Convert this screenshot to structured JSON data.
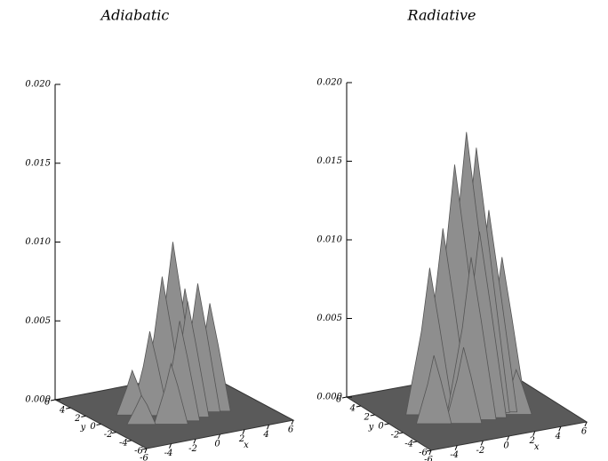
{
  "chart_data": [
    {
      "type": "surface",
      "title": "Adiabatic",
      "color": "#8e8e8e",
      "floor_color": "#5a5a5a",
      "zlim": [
        0,
        0.02
      ],
      "zticks": [
        {
          "value": 0,
          "label": "0.000"
        },
        {
          "value": 0.005,
          "label": "0.005"
        },
        {
          "value": 0.01,
          "label": "0.010"
        },
        {
          "value": 0.015,
          "label": "0.015"
        },
        {
          "value": 0.02,
          "label": "0.020"
        }
      ],
      "xlim": [
        -6,
        6
      ],
      "xticks": [
        -6,
        -4,
        -2,
        0,
        2,
        4,
        6
      ],
      "xlabel": "x",
      "ylim": [
        -6,
        6
      ],
      "yticks": [
        -6,
        -4,
        -2,
        0,
        2,
        4,
        6
      ],
      "ylabel": "y",
      "x": [
        -2.5,
        -1.5,
        -0.8,
        0.2,
        1.0,
        1.8,
        2.6,
        -0.3,
        0.6,
        -1.2,
        1.4,
        0.0,
        -3.0,
        2.2
      ],
      "y": [
        1.5,
        0.8,
        0.3,
        0.5,
        0.2,
        -0.2,
        -0.5,
        -1.2,
        -0.8,
        -1.5,
        1.0,
        2.0,
        -0.5,
        1.6
      ],
      "z": [
        0.0025,
        0.005,
        0.0085,
        0.0105,
        0.0075,
        0.0078,
        0.0065,
        0.006,
        0.007,
        0.0035,
        0.005,
        0.004,
        0.0015,
        0.003
      ]
    },
    {
      "type": "surface",
      "title": "Radiative",
      "color": "#8e8e8e",
      "floor_color": "#5a5a5a",
      "zlim": [
        0,
        0.02
      ],
      "zticks": [
        {
          "value": 0,
          "label": "0.000"
        },
        {
          "value": 0.005,
          "label": "0.005"
        },
        {
          "value": 0.01,
          "label": "0.010"
        },
        {
          "value": 0.015,
          "label": "0.015"
        },
        {
          "value": 0.02,
          "label": "0.020"
        }
      ],
      "xlim": [
        -6,
        6
      ],
      "xticks": [
        -6,
        -4,
        -2,
        0,
        2,
        4,
        6
      ],
      "xlabel": "x",
      "ylim": [
        -6,
        6
      ],
      "yticks": [
        -6,
        -4,
        -2,
        0,
        2,
        4,
        6
      ],
      "ylabel": "y",
      "x": [
        -2.2,
        -1.4,
        -0.6,
        0.2,
        0.8,
        1.6,
        2.4,
        -0.2,
        0.5,
        -1.0,
        1.2,
        3.0,
        -2.8,
        0.0,
        1.9
      ],
      "y": [
        1.2,
        0.8,
        0.6,
        0.4,
        0.1,
        -0.2,
        -0.6,
        -1.0,
        -0.9,
        -1.4,
        1.4,
        -1.5,
        -0.5,
        2.0,
        1.8
      ],
      "z": [
        0.009,
        0.0115,
        0.0155,
        0.0175,
        0.0165,
        0.0125,
        0.0095,
        0.01,
        0.0115,
        0.0045,
        0.008,
        0.0025,
        0.004,
        0.006,
        0.005
      ]
    }
  ]
}
